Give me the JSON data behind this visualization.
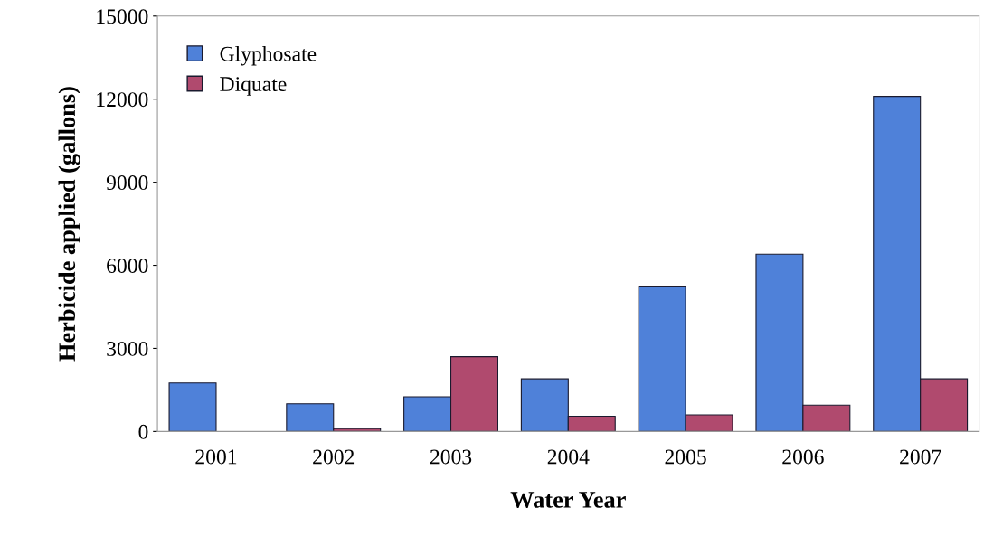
{
  "chart_data": {
    "type": "bar",
    "xlabel": "Water Year",
    "ylabel": "Herbicide applied (gallons)",
    "categories": [
      "2001",
      "2002",
      "2003",
      "2004",
      "2005",
      "2006",
      "2007"
    ],
    "series": [
      {
        "name": "Glyphosate",
        "color": "#4f81d9",
        "values": [
          1750,
          1000,
          1250,
          1900,
          5250,
          6400,
          12100
        ]
      },
      {
        "name": "Diquate",
        "color": "#b04a6e",
        "values": [
          null,
          100,
          2700,
          550,
          600,
          950,
          1900
        ]
      }
    ],
    "ylim": [
      0,
      15000
    ],
    "yticks": [
      0,
      3000,
      6000,
      9000,
      12000,
      15000
    ],
    "grid": false,
    "legend": "top left"
  }
}
